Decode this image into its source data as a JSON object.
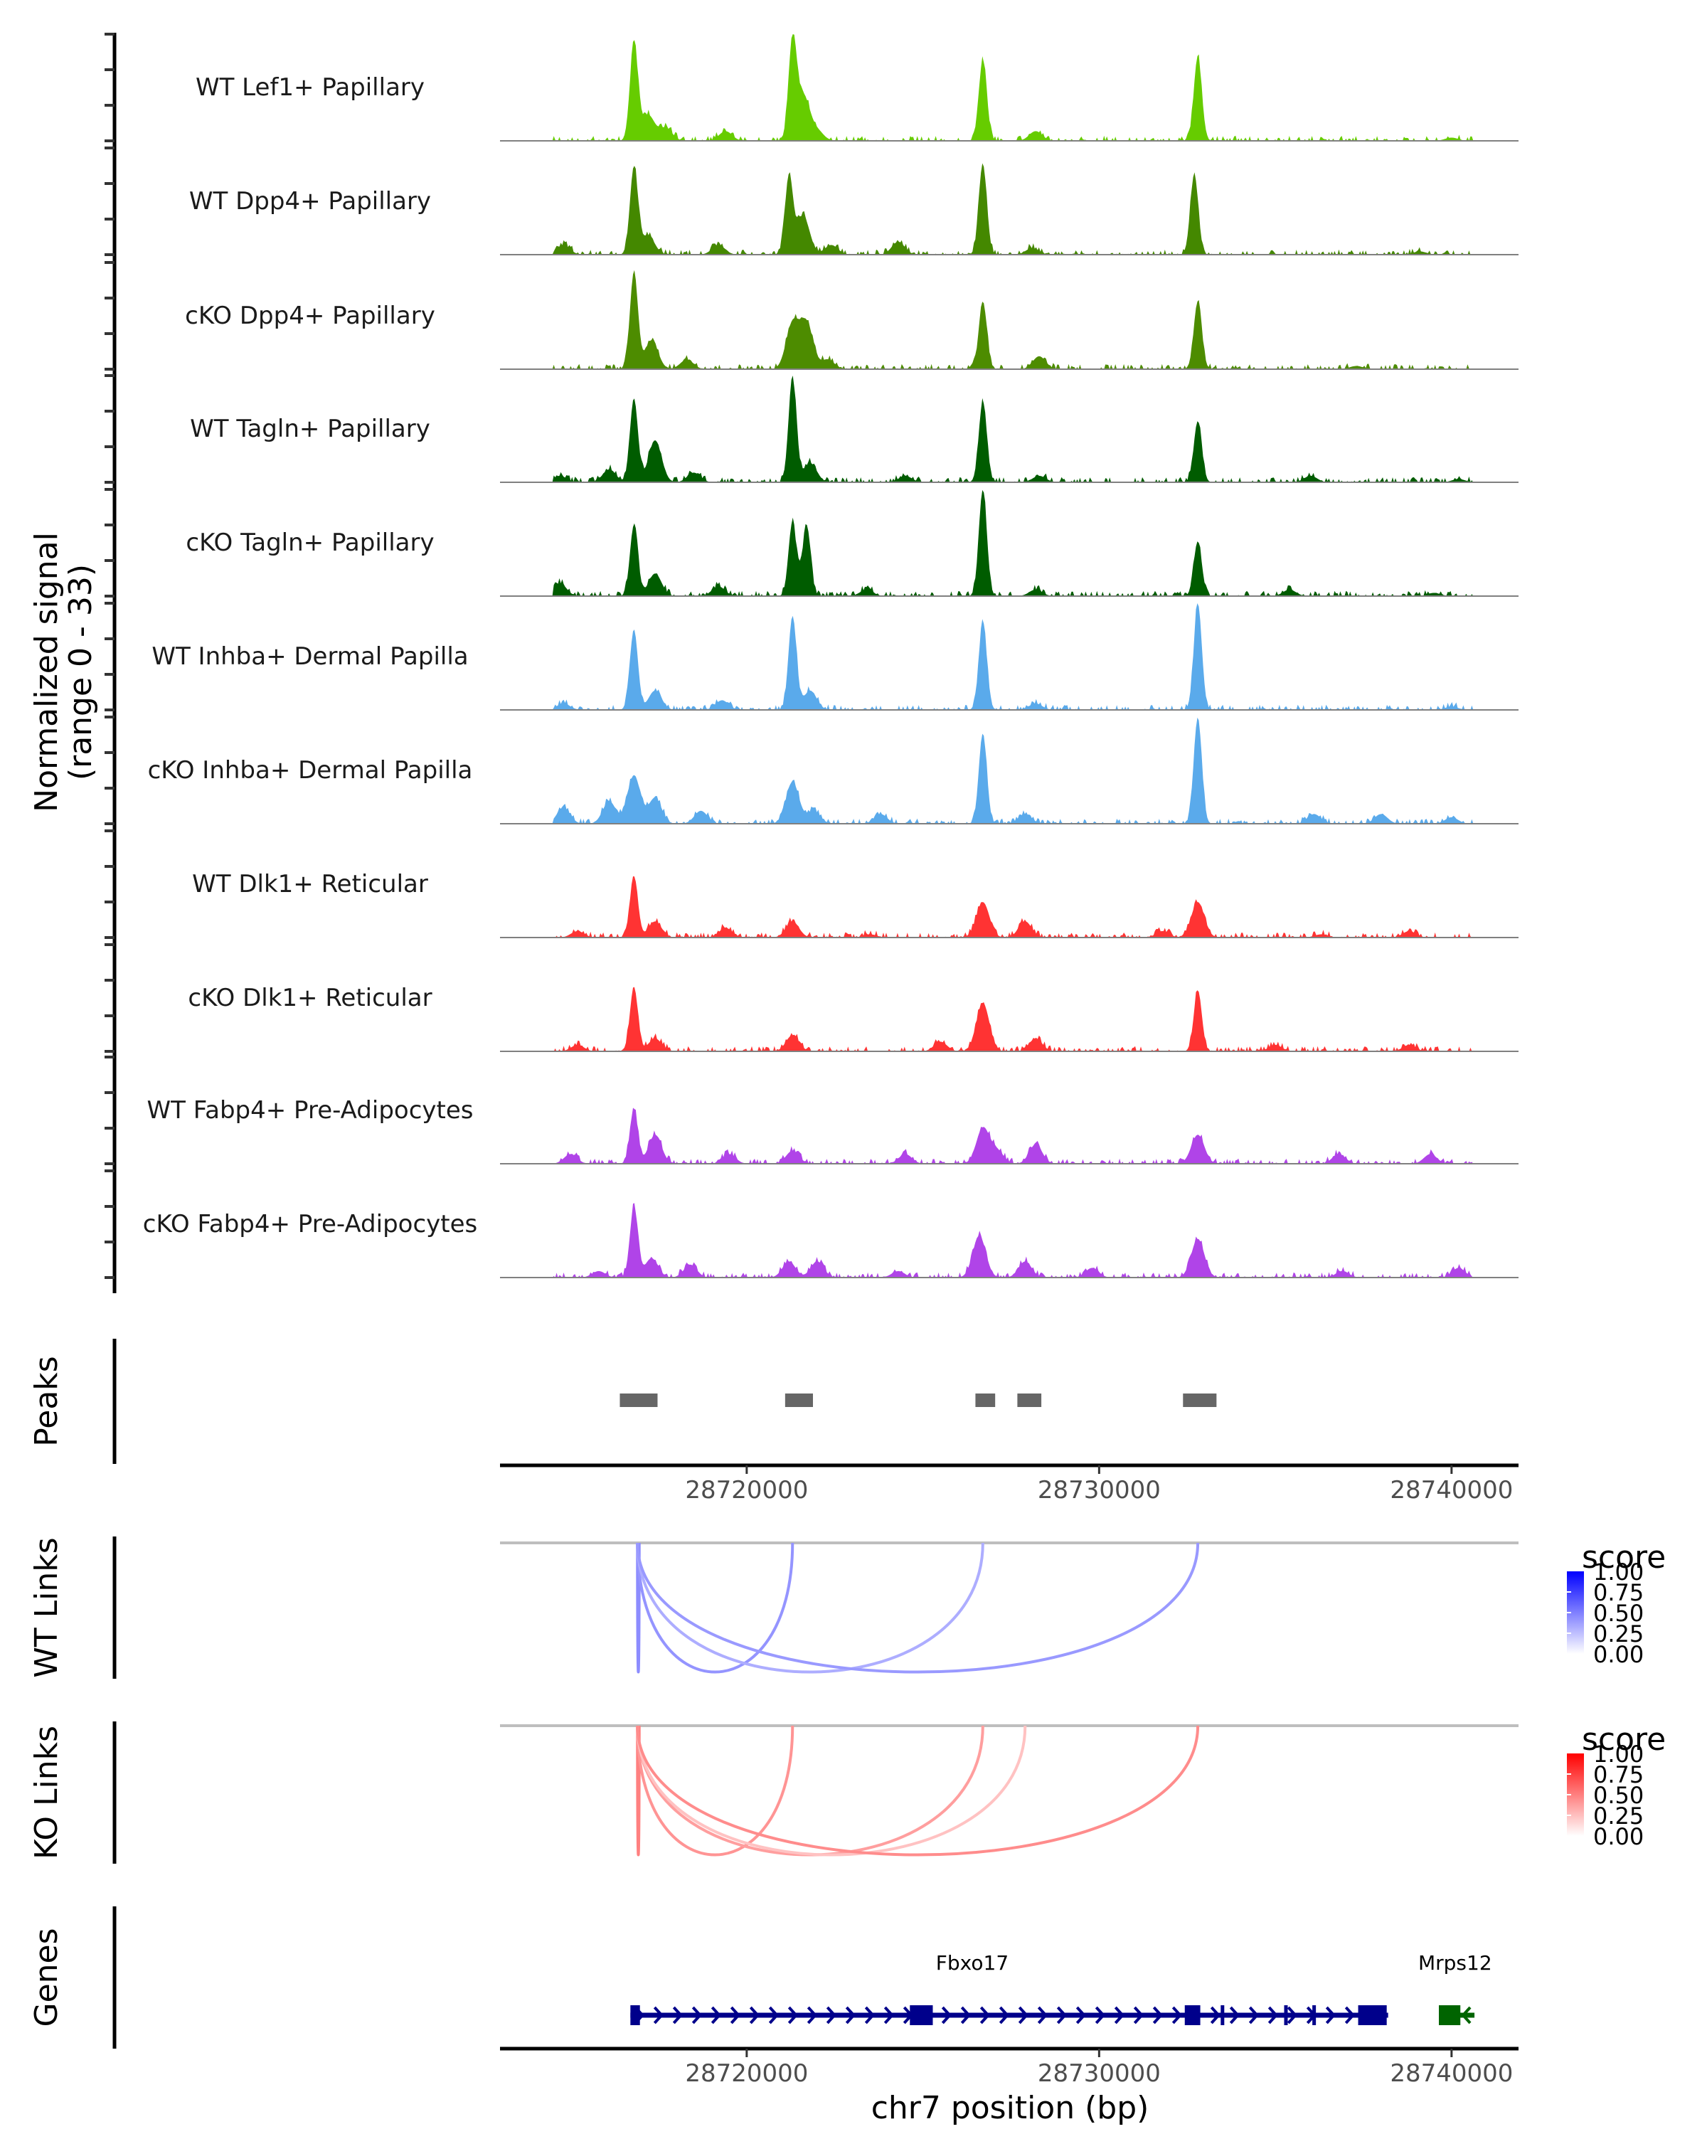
{
  "chart_data": {
    "type": "area",
    "title": "",
    "xlabel": "chr7 position (bp)",
    "ylabel": "Normalized signal",
    "ylabel_sub": "(range 0 - 33)",
    "xlim": [
      28713000,
      28741900
    ],
    "ylim": [
      0,
      33
    ],
    "x_ticks": [
      28720000,
      28730000,
      28740000
    ],
    "x_tick_labels": [
      "28720000",
      "28730000",
      "28740000"
    ],
    "tracks": [
      {
        "name": "WT Lef1+ Papillary",
        "color": "#66cc00",
        "peaks": [
          [
            28716800,
            30
          ],
          [
            28717200,
            8
          ],
          [
            28717700,
            4
          ],
          [
            28719400,
            3
          ],
          [
            28721300,
            30
          ],
          [
            28721600,
            14
          ],
          [
            28722000,
            3
          ],
          [
            28726700,
            25
          ],
          [
            28728200,
            3
          ],
          [
            28732800,
            26
          ],
          [
            28740000,
            1
          ]
        ]
      },
      {
        "name": "WT Dpp4+ Papillary",
        "color": "#448800",
        "peaks": [
          [
            28714800,
            3
          ],
          [
            28716800,
            27
          ],
          [
            28717200,
            6
          ],
          [
            28719200,
            3
          ],
          [
            28721200,
            24
          ],
          [
            28721600,
            12
          ],
          [
            28722400,
            3
          ],
          [
            28724300,
            4
          ],
          [
            28726700,
            28
          ],
          [
            28728100,
            2
          ],
          [
            28732700,
            25
          ],
          [
            28739100,
            1
          ]
        ]
      },
      {
        "name": "cKO Dpp4+ Papillary",
        "color": "#4d8c00",
        "peaks": [
          [
            28716800,
            30
          ],
          [
            28717300,
            9
          ],
          [
            28718300,
            3
          ],
          [
            28721300,
            14
          ],
          [
            28721700,
            14
          ],
          [
            28722300,
            3
          ],
          [
            28726700,
            21
          ],
          [
            28728300,
            4
          ],
          [
            28732800,
            21
          ],
          [
            28737300,
            1
          ]
        ]
      },
      {
        "name": "WT Tagln+ Papillary",
        "color": "#005c00",
        "peaks": [
          [
            28714700,
            2
          ],
          [
            28716100,
            4
          ],
          [
            28716800,
            26
          ],
          [
            28717400,
            13
          ],
          [
            28718500,
            3
          ],
          [
            28721300,
            32
          ],
          [
            28721800,
            6
          ],
          [
            28724500,
            2
          ],
          [
            28726700,
            25
          ],
          [
            28728300,
            2
          ],
          [
            28732800,
            19
          ],
          [
            28736000,
            2
          ],
          [
            28740200,
            1
          ]
        ]
      },
      {
        "name": "cKO Tagln+ Papillary",
        "color": "#005c00",
        "peaks": [
          [
            28714700,
            4
          ],
          [
            28716800,
            22
          ],
          [
            28717400,
            7
          ],
          [
            28719200,
            3
          ],
          [
            28721300,
            23
          ],
          [
            28721700,
            22
          ],
          [
            28723400,
            2
          ],
          [
            28726700,
            33
          ],
          [
            28728200,
            2
          ],
          [
            28732800,
            17
          ],
          [
            28735400,
            2
          ],
          [
            28739500,
            1
          ]
        ]
      },
      {
        "name": "WT Inhba+ Dermal Papilla",
        "color": "#5aaaeb",
        "peaks": [
          [
            28714800,
            2
          ],
          [
            28716800,
            25
          ],
          [
            28717400,
            6
          ],
          [
            28719300,
            3
          ],
          [
            28721300,
            29
          ],
          [
            28721800,
            6
          ],
          [
            28726700,
            27
          ],
          [
            28728200,
            2
          ],
          [
            28732800,
            33
          ],
          [
            28740000,
            1
          ]
        ]
      },
      {
        "name": "cKO Inhba+ Dermal Papilla",
        "color": "#5aaaeb",
        "peaks": [
          [
            28714800,
            5
          ],
          [
            28716100,
            7
          ],
          [
            28716800,
            15
          ],
          [
            28717400,
            8
          ],
          [
            28718700,
            4
          ],
          [
            28721300,
            13
          ],
          [
            28721900,
            4
          ],
          [
            28723800,
            3
          ],
          [
            28726700,
            28
          ],
          [
            28727900,
            3
          ],
          [
            28732800,
            33
          ],
          [
            28736100,
            3
          ],
          [
            28738000,
            3
          ],
          [
            28740000,
            2
          ]
        ]
      },
      {
        "name": "WT Dlk1+ Reticular",
        "color": "#ff3333",
        "peaks": [
          [
            28715200,
            2
          ],
          [
            28716800,
            19
          ],
          [
            28717400,
            5
          ],
          [
            28719400,
            3
          ],
          [
            28721300,
            5
          ],
          [
            28723500,
            1
          ],
          [
            28726700,
            11
          ],
          [
            28727900,
            5
          ],
          [
            28731800,
            2
          ],
          [
            28732800,
            11
          ],
          [
            28736300,
            1
          ],
          [
            28738800,
            2
          ]
        ]
      },
      {
        "name": "cKO Dlk1+ Reticular",
        "color": "#ff3333",
        "peaks": [
          [
            28715200,
            2
          ],
          [
            28716800,
            20
          ],
          [
            28717400,
            4
          ],
          [
            28721300,
            5
          ],
          [
            28725500,
            3
          ],
          [
            28726700,
            15
          ],
          [
            28728200,
            4
          ],
          [
            28732800,
            19
          ],
          [
            28735000,
            2
          ],
          [
            28738800,
            2
          ]
        ]
      },
      {
        "name": "WT Fabp4+ Pre-Adipocytes",
        "color": "#b044e8",
        "peaks": [
          [
            28715000,
            3
          ],
          [
            28716800,
            17
          ],
          [
            28717400,
            9
          ],
          [
            28719500,
            3
          ],
          [
            28721300,
            4
          ],
          [
            28724500,
            3
          ],
          [
            28726700,
            11
          ],
          [
            28727100,
            4
          ],
          [
            28728200,
            6
          ],
          [
            28732800,
            9
          ],
          [
            28736800,
            3
          ],
          [
            28739400,
            3
          ]
        ]
      },
      {
        "name": "cKO Fabp4+ Pre-Adipocytes",
        "color": "#b044e8",
        "peaks": [
          [
            28715800,
            2
          ],
          [
            28716800,
            22
          ],
          [
            28717300,
            6
          ],
          [
            28718400,
            4
          ],
          [
            28721200,
            5
          ],
          [
            28722000,
            5
          ],
          [
            28724300,
            2
          ],
          [
            28726600,
            13
          ],
          [
            28727900,
            5
          ],
          [
            28729800,
            3
          ],
          [
            28732800,
            12
          ],
          [
            28736900,
            2
          ],
          [
            28740200,
            3
          ]
        ]
      }
    ],
    "peaks_track": {
      "label": "Peaks",
      "color": "#666666",
      "regions": [
        [
          28716400,
          28717470
        ],
        [
          28721090,
          28721880
        ],
        [
          28726490,
          28727050
        ],
        [
          28727680,
          28728360
        ],
        [
          28732380,
          28733330
        ]
      ]
    },
    "link_tracks": [
      {
        "label": "WT Links",
        "color_low": "#ffffff",
        "color_high": "#0000ff",
        "links": [
          [
            28716900,
            28716950,
            0.45
          ],
          [
            28716900,
            28721300,
            0.42
          ],
          [
            28716900,
            28726700,
            0.32
          ],
          [
            28716900,
            28732800,
            0.4
          ]
        ]
      },
      {
        "label": "KO Links",
        "color_low": "#ffffff",
        "color_high": "#ff0000",
        "links": [
          [
            28716900,
            28716950,
            0.5
          ],
          [
            28716900,
            28721300,
            0.42
          ],
          [
            28716900,
            28726700,
            0.38
          ],
          [
            28716900,
            28727900,
            0.24
          ],
          [
            28716900,
            28732800,
            0.45
          ]
        ]
      }
    ],
    "legend": {
      "title": "score",
      "ticks": [
        "1.00",
        "0.75",
        "0.50",
        "0.25",
        "0.00"
      ],
      "range": [
        0,
        1
      ]
    },
    "genes_track": {
      "label": "Genes",
      "genes": [
        {
          "name": "Fbxo17",
          "strand": "+",
          "color": "#00008b",
          "start": 28716700,
          "end": 28738200,
          "exons": [
            [
              28716700,
              28716970
            ],
            [
              28724630,
              28725280
            ],
            [
              28732430,
              28732870
            ],
            [
              28733450,
              28733500
            ],
            [
              28735250,
              28735300
            ],
            [
              28736050,
              28736110
            ],
            [
              28737350,
              28738160
            ]
          ],
          "label_pos": 28726400
        },
        {
          "name": "Mrps12",
          "strand": "-",
          "color": "#006400",
          "start": 28739640,
          "end": 28740650,
          "exons": [
            [
              28739640,
              28740250
            ]
          ],
          "label_pos": 28740100
        }
      ]
    }
  }
}
